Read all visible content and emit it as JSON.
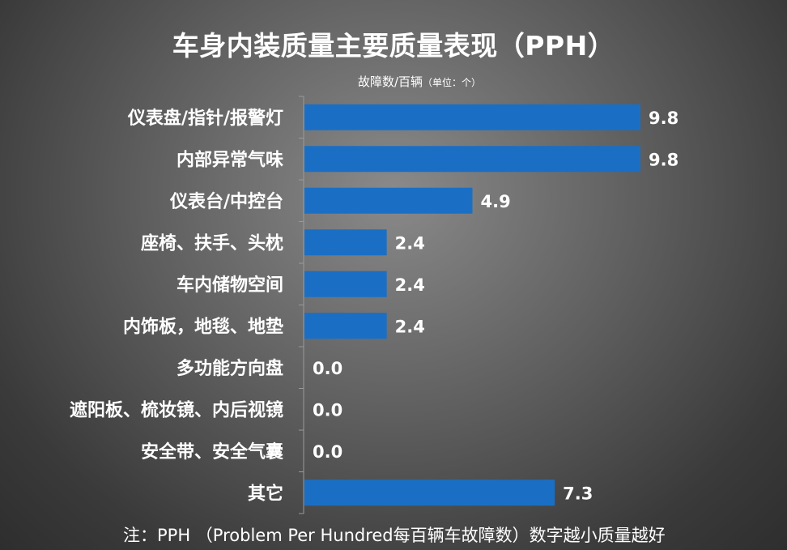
{
  "title": "车身内装质量主要质量表现（PPH）",
  "unit_main": "故障数/百辆",
  "unit_detail": "（单位：个）",
  "footnote": "注：PPH （Problem Per Hundred每百辆车故障数）数字越小质量越好",
  "colors": {
    "bar": "#1a6fc4",
    "text": "#ffffff",
    "axis": "#9a9a9a"
  },
  "chart_data": {
    "type": "bar",
    "orientation": "horizontal",
    "categories": [
      "仪表盘/指针/报警灯",
      "内部异常气味",
      "仪表台/中控台",
      "座椅、扶手、头枕",
      "车内储物空间",
      "内饰板，地毯、地垫",
      "多功能方向盘",
      "遮阳板、梳妆镜、内后视镜",
      "安全带、安全气囊",
      "其它"
    ],
    "values": [
      9.8,
      9.8,
      4.9,
      2.4,
      2.4,
      2.4,
      0.0,
      0.0,
      0.0,
      7.3
    ],
    "value_labels": [
      "9.8",
      "9.8",
      "4.9",
      "2.4",
      "2.4",
      "2.4",
      "0.0",
      "0.0",
      "0.0",
      "7.3"
    ],
    "xlim": [
      0,
      9.8
    ],
    "grid": false,
    "legend": "none"
  }
}
